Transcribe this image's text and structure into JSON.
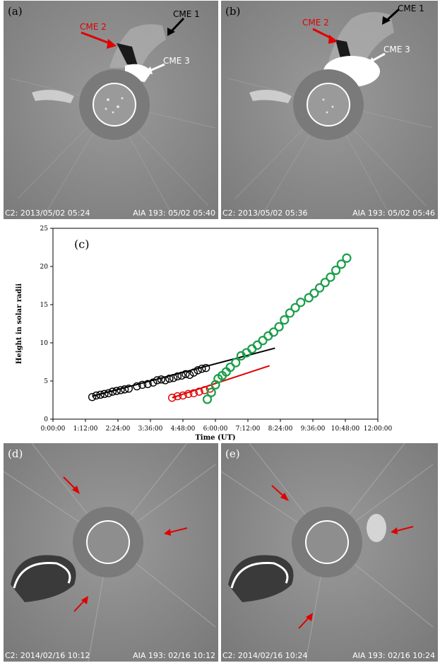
{
  "panels": {
    "a": {
      "label": "(a)",
      "caption_left": "C2: 2013/05/02 05:24",
      "caption_right": "AIA 193: 05/02 05:40",
      "annotations": [
        "CME 1",
        "CME 2",
        "CME 3"
      ]
    },
    "b": {
      "label": "(b)",
      "caption_left": "C2: 2013/05/02 05:36",
      "caption_right": "AIA 193: 05/02 05:46",
      "annotations": [
        "CME 1",
        "CME 2",
        "CME 3"
      ]
    },
    "d": {
      "label": "(d)",
      "caption_left": "C2: 2014/02/16 10:12",
      "caption_right": "AIA 193: 02/16 10:12"
    },
    "e": {
      "label": "(e)",
      "caption_left": "C2: 2014/02/16 10:24",
      "caption_right": "AIA 193: 02/16 10:24"
    }
  },
  "colors": {
    "cme1": "#000000",
    "cme2": "#e00000",
    "cme3": "#ffffff",
    "series_black": "#000000",
    "series_red": "#e00000",
    "series_green": "#1a9e4a",
    "occulter": "#7a7a7a",
    "background": "#8a8a8a"
  },
  "chart_data": {
    "type": "scatter",
    "panel_label": "(c)",
    "xlabel": "Time (UT)",
    "ylabel": "Height in solar radii",
    "xlim": [
      0,
      12
    ],
    "ylim": [
      0,
      25
    ],
    "x_ticks": [
      "0:00:00",
      "1:12:00",
      "2:24:00",
      "3:36:00",
      "4:48:00",
      "6:00:00",
      "7:12:00",
      "8:24:00",
      "9:36:00",
      "10:48:00",
      "12:00:00"
    ],
    "y_ticks": [
      0,
      5,
      10,
      15,
      20,
      25
    ],
    "series": [
      {
        "color": "#000000",
        "x": [
          1.45,
          1.6,
          1.75,
          1.9,
          2.05,
          2.2,
          2.35,
          2.5,
          2.65,
          2.8,
          3.1,
          3.3,
          3.5,
          3.7,
          3.85,
          4.0,
          4.15,
          4.3,
          4.45,
          4.6,
          4.75,
          4.9,
          5.05,
          5.2,
          5.35,
          5.5,
          5.65
        ],
        "y": [
          2.9,
          3.1,
          3.2,
          3.3,
          3.4,
          3.6,
          3.7,
          3.8,
          3.9,
          4.0,
          4.3,
          4.5,
          4.6,
          4.8,
          5.1,
          5.2,
          5.1,
          5.3,
          5.4,
          5.6,
          5.7,
          5.9,
          5.8,
          6.1,
          6.4,
          6.6,
          6.7
        ],
        "fit_x": [
          1.45,
          8.2
        ],
        "fit_y": [
          3.0,
          9.3
        ]
      },
      {
        "color": "#e00000",
        "x": [
          4.4,
          4.6,
          4.8,
          5.0,
          5.2,
          5.4,
          5.6,
          5.8
        ],
        "y": [
          2.8,
          3.0,
          3.1,
          3.3,
          3.4,
          3.6,
          3.8,
          4.0
        ],
        "fit_x": [
          4.4,
          8.0
        ],
        "fit_y": [
          2.8,
          7.0
        ]
      },
      {
        "color": "#1a9e4a",
        "x": [
          5.7,
          5.85,
          6.0,
          6.1,
          6.25,
          6.4,
          6.55,
          6.75,
          6.95,
          7.15,
          7.35,
          7.55,
          7.75,
          7.95,
          8.15,
          8.35,
          8.55,
          8.75,
          8.95,
          9.15,
          9.45,
          9.65,
          9.85,
          10.05,
          10.25,
          10.45,
          10.65,
          10.85
        ],
        "y": [
          2.6,
          3.5,
          4.5,
          5.3,
          5.7,
          6.2,
          6.8,
          7.4,
          8.3,
          8.7,
          9.2,
          9.7,
          10.3,
          10.9,
          11.4,
          12.1,
          13.0,
          13.9,
          14.6,
          15.3,
          15.9,
          16.5,
          17.2,
          17.9,
          18.6,
          19.5,
          20.3,
          21.1
        ]
      }
    ]
  }
}
